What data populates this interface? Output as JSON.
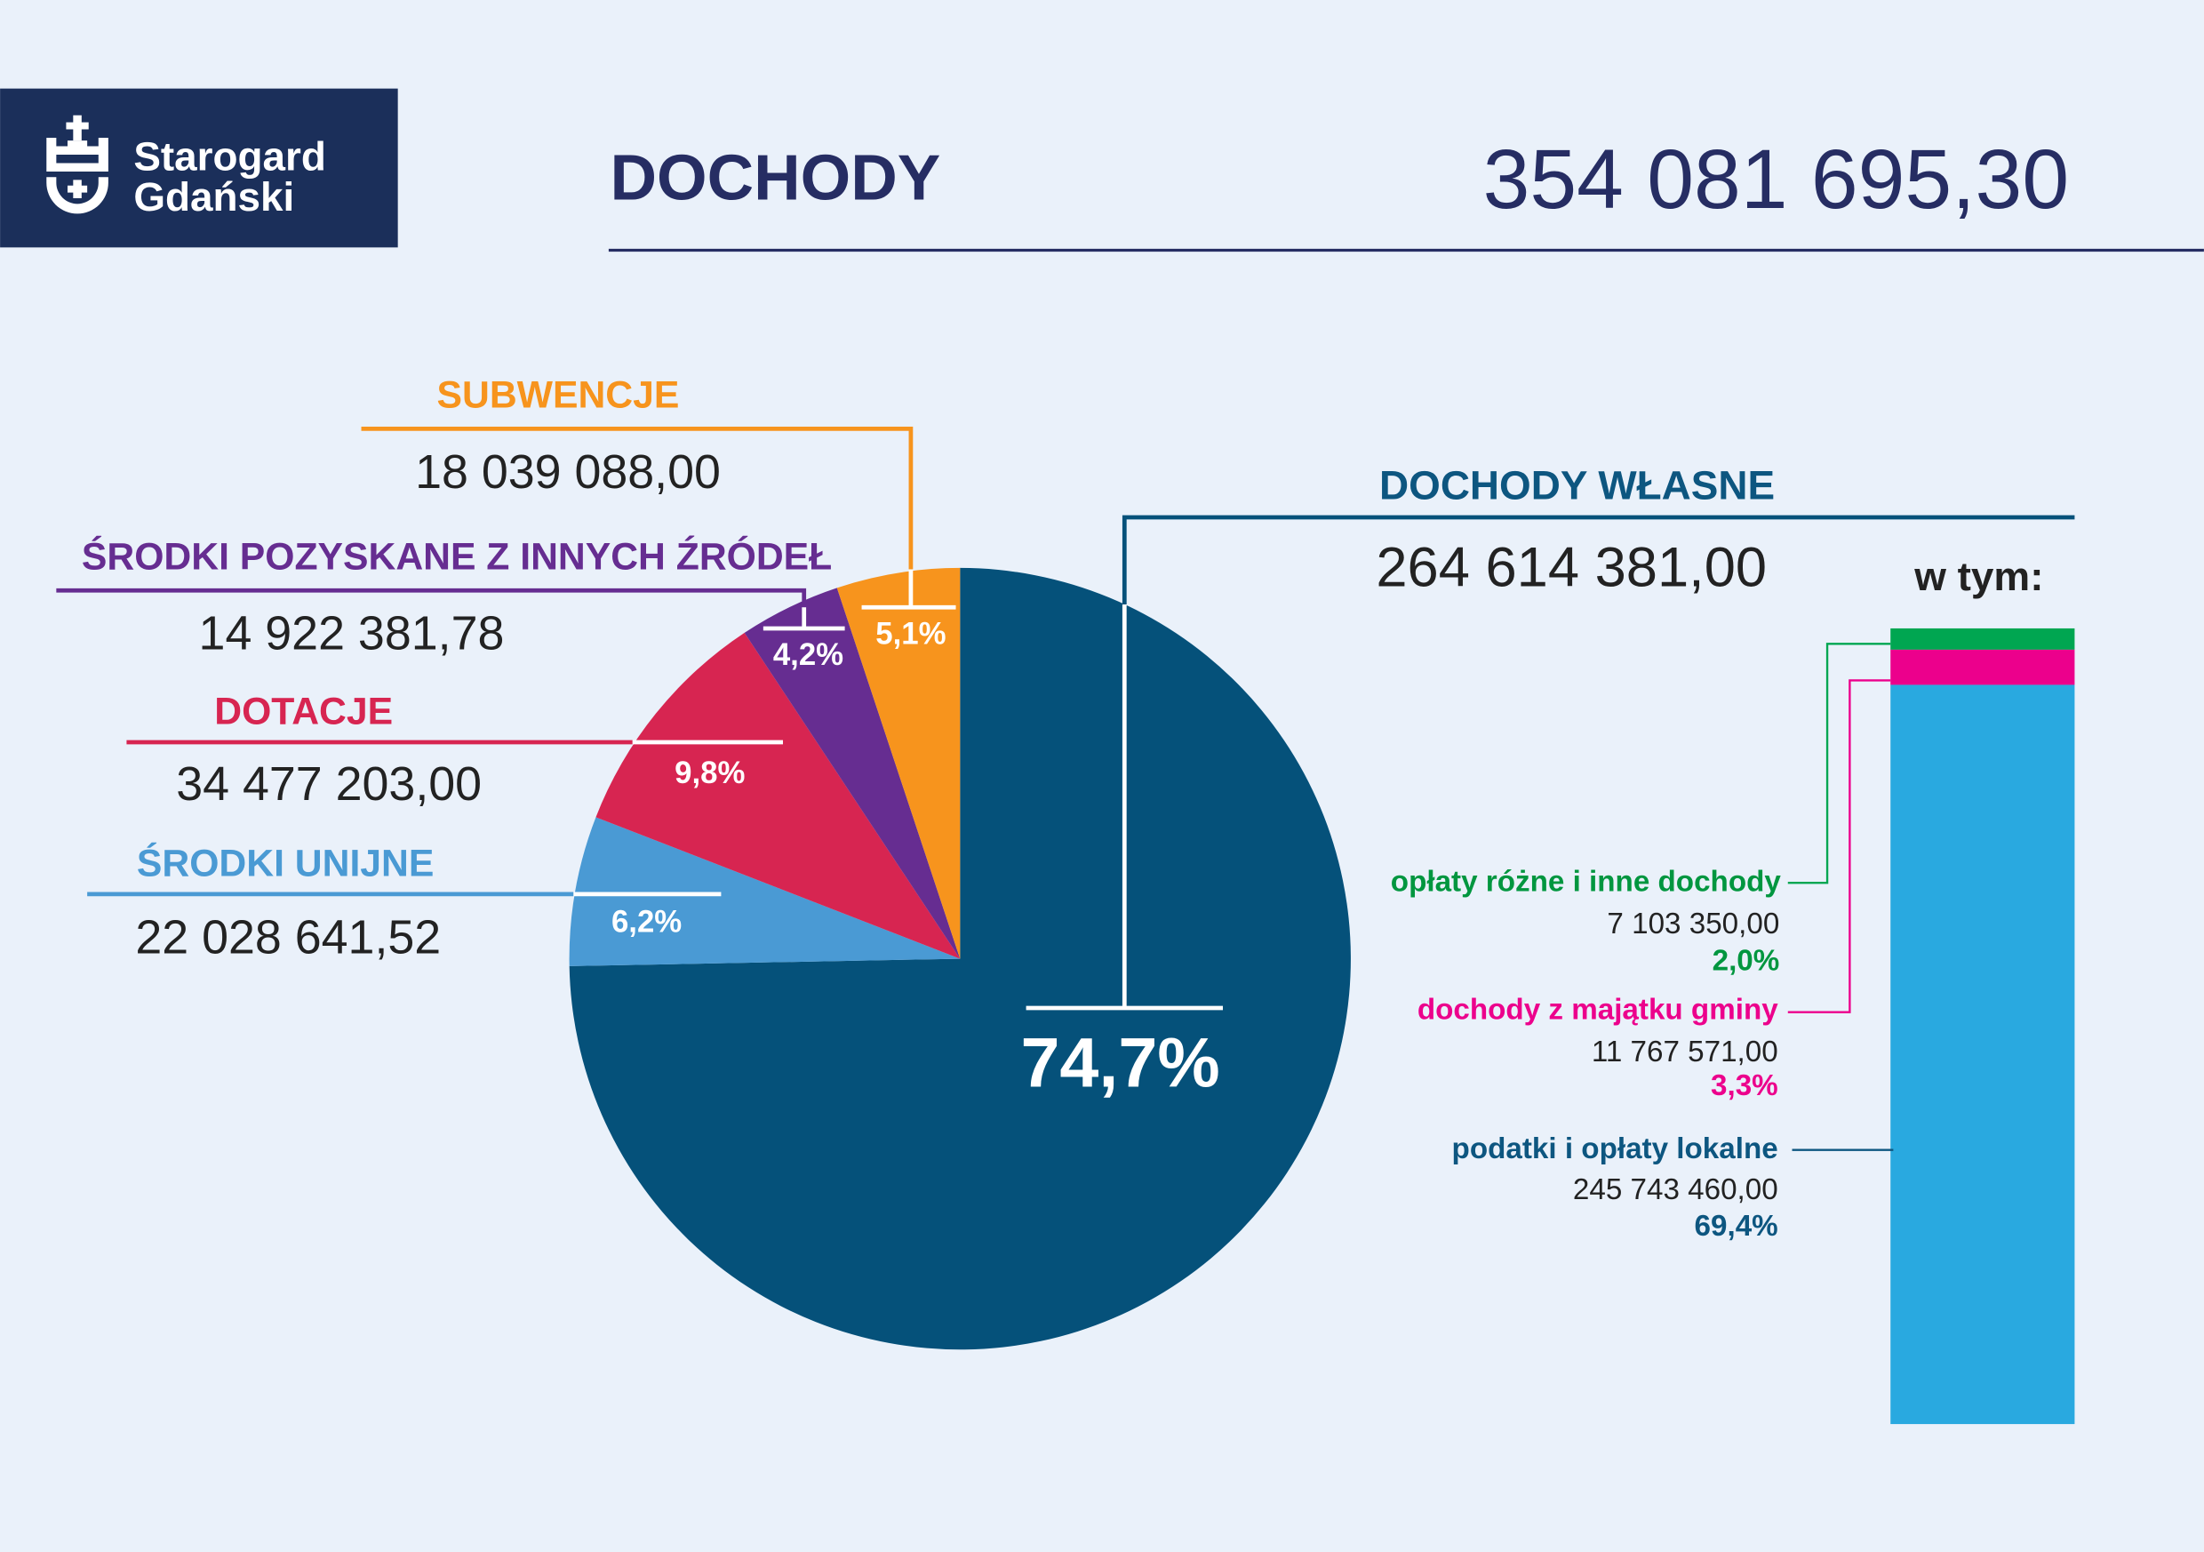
{
  "logo": {
    "line1": "Starogard",
    "line2": "Gdański"
  },
  "header": {
    "title": "DOCHODY",
    "total": "354 081 695,30"
  },
  "chart_data": {
    "type": "pie",
    "title": "DOCHODY",
    "total": "354 081 695,30",
    "slices": [
      {
        "name": "DOCHODY WŁASNE",
        "amount": "264 614 381,00",
        "value": 74.7,
        "pct_label": "74,7%",
        "color": "#05517a"
      },
      {
        "name": "ŚRODKI UNIJNE",
        "amount": "22 028 641,52",
        "value": 6.2,
        "pct_label": "6,2%",
        "color": "#4a9ad4"
      },
      {
        "name": "DOTACJE",
        "amount": "34 477 203,00",
        "value": 9.8,
        "pct_label": "9,8%",
        "color": "#d72551"
      },
      {
        "name": "ŚRODKI POZYSKANE Z INNYCH ŹRÓDEŁ",
        "amount": "14 922 381,78",
        "value": 4.2,
        "pct_label": "4,2%",
        "color": "#662d91"
      },
      {
        "name": "SUBWENCJE",
        "amount": "18 039 088,00",
        "value": 5.1,
        "pct_label": "5,1%",
        "color": "#f7941d"
      }
    ],
    "breakdown": {
      "heading": "w tym:",
      "type": "stacked-bar",
      "items": [
        {
          "name": "opłaty różne i inne dochody",
          "amount": "7 103 350,00",
          "value": 2.0,
          "pct_label": "2,0%",
          "color": "#00a651"
        },
        {
          "name": "dochody z majątku gminy",
          "amount": "11 767 571,00",
          "value": 3.3,
          "pct_label": "3,3%",
          "color": "#ec008c"
        },
        {
          "name": "podatki i opłaty lokalne",
          "amount": "245 743 460,00",
          "value": 69.4,
          "pct_label": "69,4%",
          "color": "#29a9e0"
        }
      ]
    }
  }
}
